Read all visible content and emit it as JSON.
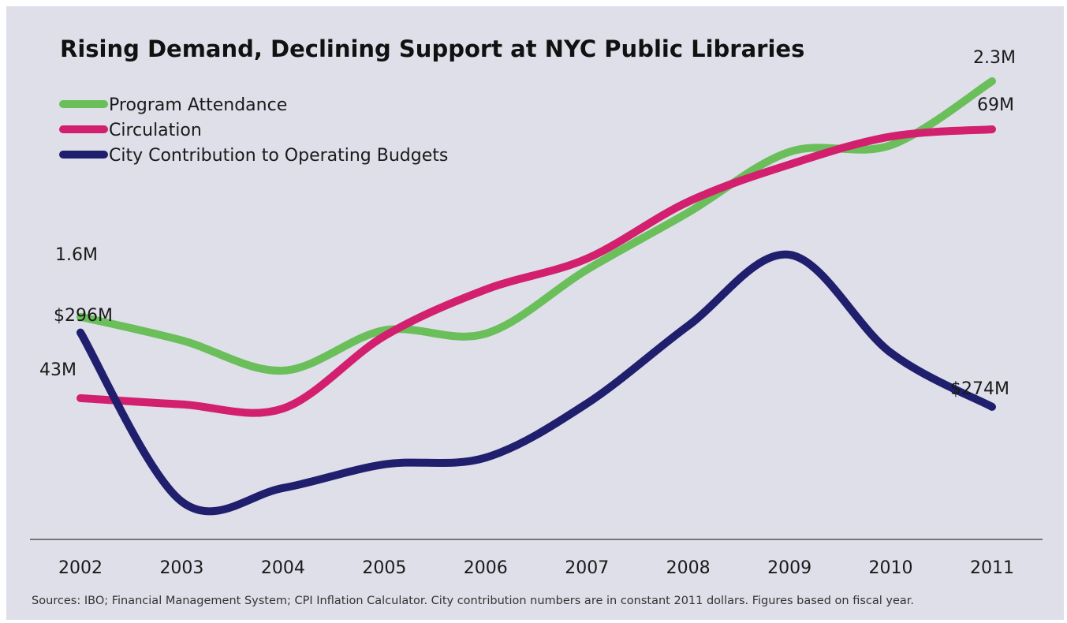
{
  "chart_data": {
    "type": "line",
    "title": "Rising Demand, Declining Support at NYC Public Libraries",
    "source_note": "Sources: IBO; Financial Management System; CPI Inflation Calculator. City contribution numbers are in constant 2011 dollars. Figures based on fiscal year.",
    "x": [
      "2002",
      "2003",
      "2004",
      "2005",
      "2006",
      "2007",
      "2008",
      "2009",
      "2010",
      "2011"
    ],
    "legend_position": "top-left",
    "grid": false,
    "series": [
      {
        "name": "Program Attendance",
        "color": "#6abf5a",
        "values": [
          1.6,
          1.53,
          1.44,
          1.56,
          1.55,
          1.74,
          1.91,
          2.09,
          2.11,
          2.3
        ],
        "unit": "attendees (M)",
        "start_label": "1.6M",
        "end_label": "2.3M"
      },
      {
        "name": "Circulation",
        "color": "#d2206f",
        "values": [
          43.0,
          42.4,
          42.0,
          49.0,
          53.5,
          56.5,
          62.0,
          65.6,
          68.3,
          69.0
        ],
        "unit": "items (M)",
        "start_label": "43M",
        "end_label": "69M"
      },
      {
        "name": "City Contribution to Operating Budgets",
        "color": "#1f1f6e",
        "values": [
          296,
          246,
          250,
          257,
          259,
          275,
          298,
          319,
          290,
          274
        ],
        "unit": "$M",
        "start_label": "$296M",
        "end_label": "$274M"
      }
    ]
  }
}
